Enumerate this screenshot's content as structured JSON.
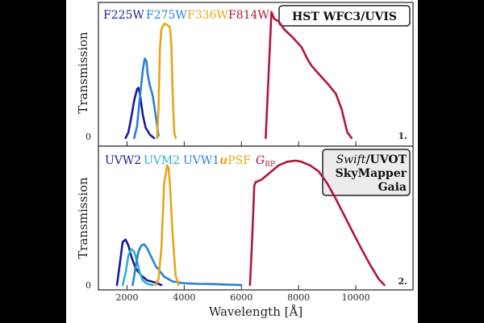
{
  "chart_data": [
    {
      "type": "line",
      "title": "HST WFC3/UVIS",
      "xlabel": "",
      "ylabel": "Transmission",
      "xlim": [
        1000,
        12000
      ],
      "ylim": [
        0,
        1.12
      ],
      "yticks": [
        "0"
      ],
      "panel_tag": "1.",
      "series": [
        {
          "name": "F225W",
          "color": "#1a1a9e",
          "x": [
            1950,
            2050,
            2150,
            2250,
            2350,
            2400,
            2450,
            2550,
            2650,
            2800,
            2950
          ],
          "y": [
            0.0,
            0.05,
            0.18,
            0.32,
            0.42,
            0.43,
            0.38,
            0.2,
            0.09,
            0.03,
            0.0
          ]
        },
        {
          "name": "F275W",
          "color": "#2a7fd4",
          "x": [
            2250,
            2350,
            2450,
            2550,
            2620,
            2680,
            2720,
            2800,
            2900,
            3000,
            3100
          ],
          "y": [
            0.0,
            0.1,
            0.35,
            0.58,
            0.68,
            0.66,
            0.55,
            0.45,
            0.36,
            0.2,
            0.02
          ]
        },
        {
          "name": "F336W",
          "color": "#e6a619",
          "x": [
            3050,
            3100,
            3150,
            3200,
            3300,
            3400,
            3500,
            3550,
            3600,
            3650,
            3700
          ],
          "y": [
            0.0,
            0.25,
            0.75,
            0.93,
            0.98,
            0.97,
            0.95,
            0.8,
            0.35,
            0.05,
            0.0
          ]
        },
        {
          "name": "F814W",
          "color": "#b2163a",
          "x": [
            6850,
            6950,
            7050,
            7150,
            7300,
            7500,
            7800,
            8100,
            8300,
            8450,
            8700,
            9000,
            9300,
            9500,
            9700,
            9850
          ],
          "y": [
            0.0,
            0.55,
            1.08,
            1.02,
            1.0,
            0.93,
            0.86,
            0.78,
            0.68,
            0.62,
            0.55,
            0.47,
            0.38,
            0.25,
            0.05,
            0.0
          ]
        }
      ]
    },
    {
      "type": "line",
      "title": "Swift/UVOT SkyMapper Gaia",
      "xlabel": "Wavelength [Å]",
      "ylabel": "Transmission",
      "xlim": [
        1000,
        12000
      ],
      "ylim": [
        0,
        1.12
      ],
      "xticks": [
        "2000",
        "4000",
        "6000",
        "8000",
        "10000"
      ],
      "yticks": [
        "0"
      ],
      "panel_tag": "2.",
      "series": [
        {
          "name": "UVW2",
          "color": "#1a1a9e",
          "x": [
            1650,
            1750,
            1850,
            1950,
            2050,
            2150,
            2300,
            2500,
            2700,
            3000,
            3200
          ],
          "y": [
            0.0,
            0.18,
            0.36,
            0.38,
            0.33,
            0.24,
            0.14,
            0.08,
            0.04,
            0.02,
            0.0
          ]
        },
        {
          "name": "UVM2",
          "color": "#2ab3c9",
          "x": [
            1850,
            1950,
            2050,
            2150,
            2250,
            2350,
            2450,
            2550,
            2700,
            2900
          ],
          "y": [
            0.0,
            0.1,
            0.25,
            0.3,
            0.28,
            0.2,
            0.1,
            0.04,
            0.01,
            0.0
          ]
        },
        {
          "name": "UVW1",
          "color": "#2a7fd4",
          "x": [
            2200,
            2300,
            2400,
            2500,
            2600,
            2700,
            2800,
            3000,
            3300,
            3600,
            4000,
            4500,
            5000,
            5500,
            6000
          ],
          "y": [
            0.0,
            0.15,
            0.28,
            0.33,
            0.34,
            0.31,
            0.26,
            0.16,
            0.07,
            0.03,
            0.015,
            0.01,
            0.008,
            0.004,
            0.0
          ]
        },
        {
          "name": "uPSF",
          "color": "#e6a619",
          "x": [
            3000,
            3100,
            3200,
            3300,
            3400,
            3450,
            3500,
            3600,
            3700,
            3800
          ],
          "y": [
            0.0,
            0.05,
            0.3,
            0.85,
            1.0,
            0.98,
            0.85,
            0.4,
            0.08,
            0.0
          ]
        },
        {
          "name": "G_RP",
          "color": "#b2163a",
          "x": [
            6300,
            6380,
            6450,
            6500,
            6700,
            7000,
            7300,
            7600,
            7900,
            8100,
            8400,
            8700,
            9000,
            9300,
            9600,
            9900,
            10200,
            10500,
            10800,
            11000
          ],
          "y": [
            0.0,
            0.4,
            0.83,
            0.86,
            0.88,
            0.94,
            1.0,
            1.03,
            1.04,
            1.03,
            1.0,
            0.95,
            0.85,
            0.72,
            0.58,
            0.44,
            0.3,
            0.17,
            0.05,
            0.0
          ]
        }
      ]
    }
  ],
  "legend_labels": {
    "p1": [
      "F225W",
      "F275W",
      "F336W",
      "F814W"
    ],
    "p2_uvw2": "UVW2",
    "p2_uvm2": "UVM2",
    "p2_uvw1": "UVW1",
    "p2_upsf_u": "u",
    "p2_upsf_rest": "PSF",
    "p2_grp_g": "G",
    "p2_grp_sub": "RP"
  },
  "boxes": {
    "p1": "HST  WFC3/UVIS",
    "p2_line1_a": "Swift",
    "p2_line1_b": "/UVOT",
    "p2_line2": "SkyMapper",
    "p2_line3": "Gaia"
  },
  "colors": {
    "background": "#000000",
    "panel": "#ffffff",
    "axes": "#222222"
  }
}
